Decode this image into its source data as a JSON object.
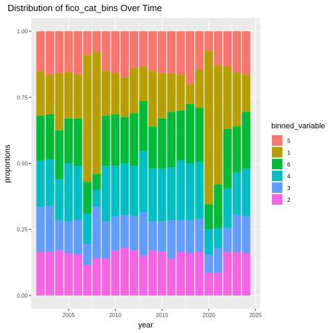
{
  "chart_data": {
    "type": "bar",
    "stacked": true,
    "title": "Distribution of fico_cat_bins Over Time",
    "xlabel": "year",
    "ylabel": "proportions",
    "xlim": [
      2001,
      2025.5
    ],
    "ylim": [
      -0.05,
      1.05
    ],
    "x_ticks": [
      2005,
      2010,
      2015,
      2020,
      2025
    ],
    "x_tick_labels": [
      "2005",
      "2010",
      "2015",
      "2020",
      "2025"
    ],
    "y_ticks": [
      0,
      0.25,
      0.5,
      0.75,
      1.0
    ],
    "y_tick_labels": [
      "0.00",
      "0.25",
      "0.50",
      "0.75",
      "1.00"
    ],
    "grid": true,
    "legend": {
      "title": "binned_variable",
      "position": "right",
      "entries": [
        {
          "label": "5",
          "color": "#F8766D"
        },
        {
          "label": "1",
          "color": "#B79F00"
        },
        {
          "label": "6",
          "color": "#00BA38"
        },
        {
          "label": "4",
          "color": "#00BFC4"
        },
        {
          "label": "3",
          "color": "#619CFF"
        },
        {
          "label": "2",
          "color": "#F564E3"
        }
      ]
    },
    "x": [
      2002,
      2003,
      2004,
      2005,
      2006,
      2007,
      2008,
      2009,
      2010,
      2011,
      2012,
      2013,
      2014,
      2015,
      2016,
      2017,
      2018,
      2019,
      2020,
      2021,
      2022,
      2023,
      2024
    ],
    "series": [
      {
        "name": "2",
        "color": "#F564E3",
        "values": [
          0.165,
          0.165,
          0.17,
          0.16,
          0.155,
          0.115,
          0.14,
          0.14,
          0.17,
          0.18,
          0.17,
          0.15,
          0.17,
          0.165,
          0.14,
          0.165,
          0.16,
          0.165,
          0.085,
          0.085,
          0.165,
          0.165,
          0.16
        ]
      },
      {
        "name": "3",
        "color": "#619CFF",
        "values": [
          0.17,
          0.175,
          0.115,
          0.12,
          0.13,
          0.08,
          0.195,
          0.14,
          0.13,
          0.125,
          0.13,
          0.165,
          0.11,
          0.115,
          0.145,
          0.12,
          0.125,
          0.125,
          0.07,
          0.095,
          0.09,
          0.14,
          0.14
        ]
      },
      {
        "name": "4",
        "color": "#00BFC4",
        "values": [
          0.175,
          0.175,
          0.155,
          0.22,
          0.205,
          0.115,
          0.065,
          0.21,
          0.19,
          0.195,
          0.19,
          0.23,
          0.2,
          0.2,
          0.2,
          0.225,
          0.215,
          0.215,
          0.095,
          0.075,
          0.15,
          0.16,
          0.18
        ]
      },
      {
        "name": "6",
        "color": "#00BA38",
        "values": [
          0.17,
          0.17,
          0.185,
          0.17,
          0.18,
          0.12,
          0.06,
          0.19,
          0.195,
          0.175,
          0.2,
          0.19,
          0.16,
          0.19,
          0.21,
          0.19,
          0.225,
          0.205,
          0.095,
          0.165,
          0.225,
          0.175,
          0.215
        ]
      },
      {
        "name": "1",
        "color": "#B79F00",
        "values": [
          0.17,
          0.15,
          0.215,
          0.175,
          0.165,
          0.48,
          0.46,
          0.17,
          0.155,
          0.15,
          0.17,
          0.13,
          0.21,
          0.17,
          0.145,
          0.135,
          0.075,
          0.145,
          0.58,
          0.45,
          0.235,
          0.205,
          0.14
        ]
      },
      {
        "name": "5",
        "color": "#F8766D",
        "values": [
          0.15,
          0.165,
          0.16,
          0.155,
          0.165,
          0.09,
          0.08,
          0.15,
          0.16,
          0.175,
          0.14,
          0.135,
          0.15,
          0.16,
          0.16,
          0.165,
          0.2,
          0.145,
          0.075,
          0.13,
          0.135,
          0.155,
          0.165
        ]
      }
    ]
  }
}
